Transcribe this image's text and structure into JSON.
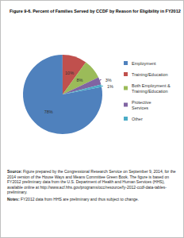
{
  "chart_data": {
    "type": "pie",
    "title": "Figure 9-6. Percent of Families Served by CCDF by Reason for Eligibility in FY2012",
    "categories": [
      "Employment",
      "Training/Education",
      "Both Employment & Training/Education",
      "Protective Services",
      "Other"
    ],
    "values": [
      78,
      10,
      8,
      3,
      1
    ],
    "value_labels": [
      "78%",
      "10%",
      "8%",
      "3%",
      "1%"
    ],
    "colors": [
      "#4f81bd",
      "#c0504d",
      "#9bbb59",
      "#8064a2",
      "#4bacc6"
    ],
    "data_labels": true,
    "legend": "right",
    "annotations": [
      {
        "label": "Source:",
        "text": "Figure prepared by the Congressional Research Service on September 9, 2014, for the 2014 version of the House Ways and Means Committee Green Book. The figure is based on FY2012 preliminary data from the U.S. Department of Health and Human Services (HHS), available online at http://www.acf.hhs.gov/programs/occ/resource/fy-2012-ccdf-data-tables-preliminary."
      },
      {
        "label": "Notes:",
        "text": "FY2012 data from HHS are preliminary and thus subject to change."
      }
    ]
  }
}
